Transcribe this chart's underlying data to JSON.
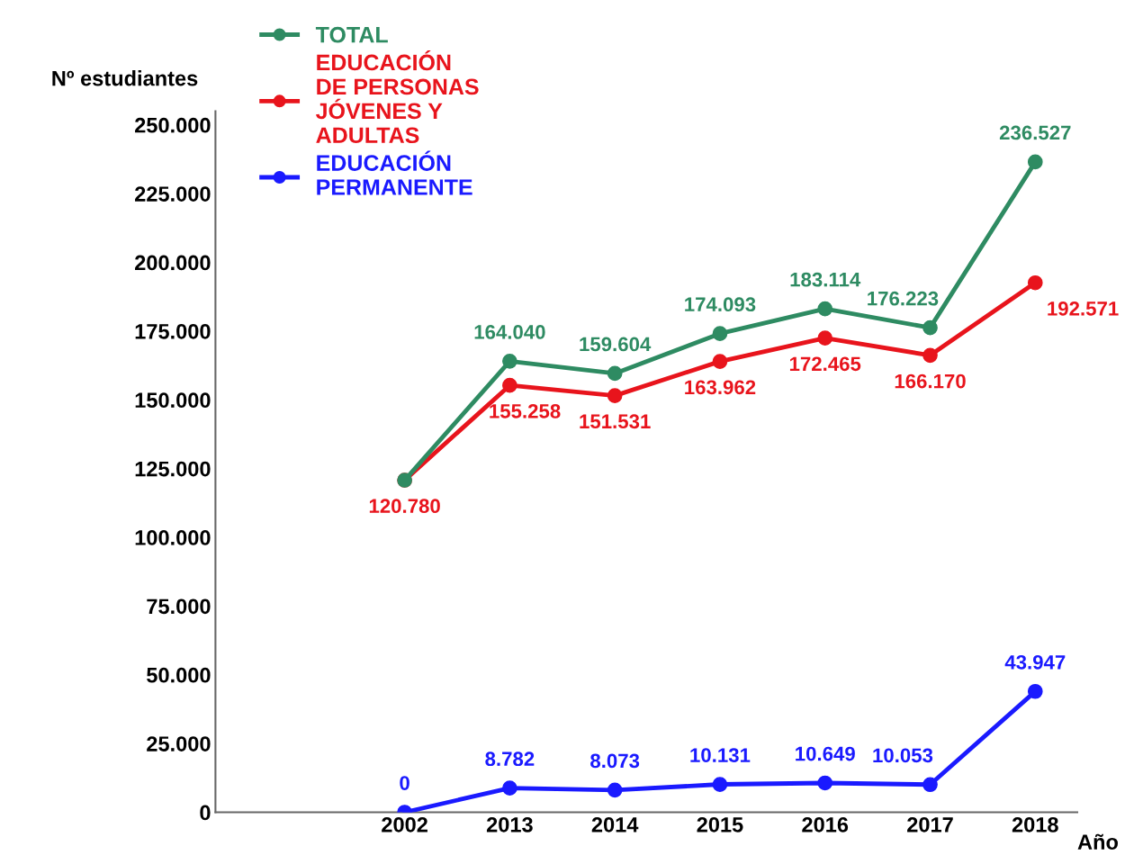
{
  "chart_data": {
    "type": "line",
    "xlabel": "Año",
    "ylabel": "Nº estudiantes",
    "categories": [
      "2002",
      "2013",
      "2014",
      "2015",
      "2016",
      "2017",
      "2018"
    ],
    "series": [
      {
        "name": "TOTAL",
        "color": "#2e8b62",
        "values": [
          120780,
          164040,
          159604,
          174093,
          183114,
          176223,
          236527
        ],
        "value_labels": [
          null,
          "164.040",
          "159.604",
          "174.093",
          "183.114",
          "176.223",
          "236.527"
        ]
      },
      {
        "name": "EDUCACIÓN\nDE PERSONAS\nJÓVENES Y\nADULTAS",
        "color": "#e8141c",
        "values": [
          120780,
          155258,
          151531,
          163962,
          172465,
          166170,
          192571
        ],
        "value_labels": [
          "120.780",
          "155.258",
          "151.531",
          "163.962",
          "172.465",
          "166.170",
          "192.571"
        ]
      },
      {
        "name": "EDUCACIÓN\nPERMANENTE",
        "color": "#1a1aff",
        "values": [
          0,
          8782,
          8073,
          10131,
          10649,
          10053,
          43947
        ],
        "value_labels": [
          "0",
          "8.782",
          "8.073",
          "10.131",
          "10.649",
          "10.053",
          "43.947"
        ]
      }
    ],
    "ylim": [
      0,
      255000
    ],
    "yticks": [
      {
        "value": 0,
        "label": "0"
      },
      {
        "value": 25000,
        "label": "25.000"
      },
      {
        "value": 50000,
        "label": "50.000"
      },
      {
        "value": 75000,
        "label": "75.000"
      },
      {
        "value": 100000,
        "label": "100.000"
      },
      {
        "value": 125000,
        "label": "125.000"
      },
      {
        "value": 150000,
        "label": "150.000"
      },
      {
        "value": 175000,
        "label": "175.000"
      },
      {
        "value": 200000,
        "label": "200.000"
      },
      {
        "value": 225000,
        "label": "225.000"
      },
      {
        "value": 250000,
        "label": "250.000"
      }
    ],
    "grid": false,
    "legend": "top left",
    "marker": "circle",
    "line_style": "solid"
  }
}
